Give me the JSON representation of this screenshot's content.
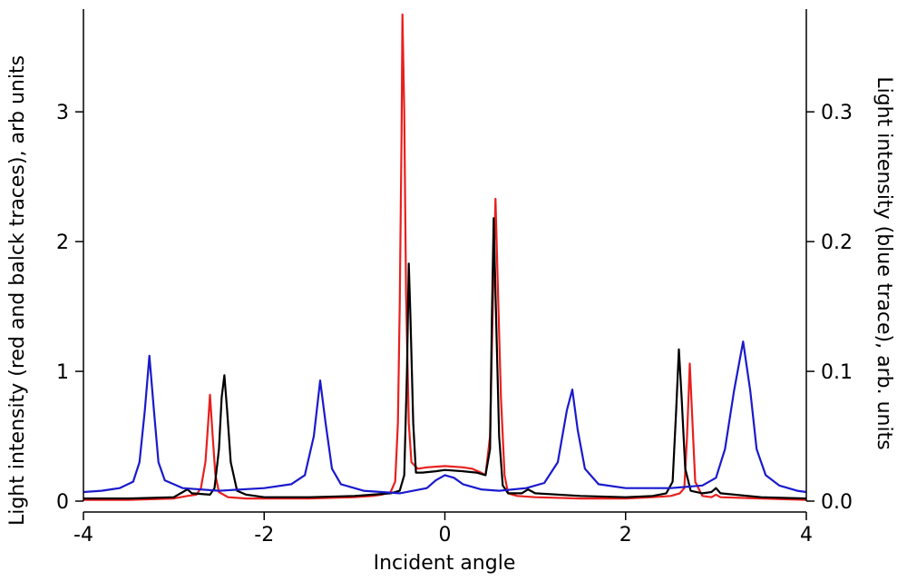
{
  "chart_data": {
    "type": "line",
    "title": "",
    "xlabel": "Incident angle",
    "ylabel_left": "Light intensity (red and balck traces), arb units",
    "ylabel_right": "Light intensity (blue trace), arb. units",
    "xlim": [
      -4,
      4
    ],
    "ylim_left": [
      0,
      3.75
    ],
    "ylim_right": [
      0,
      0.375
    ],
    "x_ticks": [
      -4,
      -2,
      0,
      2,
      4
    ],
    "x_tick_labels": [
      "-4",
      "-2",
      "0",
      "2",
      "4"
    ],
    "y_left_ticks": [
      0,
      1,
      2,
      3
    ],
    "y_left_tick_labels": [
      "0",
      "1",
      "2",
      "3"
    ],
    "y_right_ticks": [
      0,
      0.1,
      0.2,
      0.3
    ],
    "y_right_tick_labels": [
      "0.0",
      "0.1",
      "0.2",
      "0.3"
    ],
    "grid": false,
    "series": [
      {
        "color": "#e8201e",
        "axis": "left",
        "points": [
          [
            -4.0,
            0.01
          ],
          [
            -3.5,
            0.01
          ],
          [
            -3.0,
            0.02
          ],
          [
            -2.85,
            0.04
          ],
          [
            -2.75,
            0.05
          ],
          [
            -2.7,
            0.1
          ],
          [
            -2.65,
            0.3
          ],
          [
            -2.62,
            0.6
          ],
          [
            -2.6,
            0.82
          ],
          [
            -2.57,
            0.5
          ],
          [
            -2.54,
            0.2
          ],
          [
            -2.5,
            0.07
          ],
          [
            -2.4,
            0.03
          ],
          [
            -2.2,
            0.02
          ],
          [
            -2.0,
            0.02
          ],
          [
            -1.5,
            0.02
          ],
          [
            -1.0,
            0.03
          ],
          [
            -0.8,
            0.04
          ],
          [
            -0.7,
            0.05
          ],
          [
            -0.6,
            0.07
          ],
          [
            -0.55,
            0.15
          ],
          [
            -0.52,
            0.6
          ],
          [
            -0.5,
            1.5
          ],
          [
            -0.48,
            2.8
          ],
          [
            -0.47,
            3.75
          ],
          [
            -0.45,
            3.0
          ],
          [
            -0.43,
            1.6
          ],
          [
            -0.4,
            0.6
          ],
          [
            -0.37,
            0.3
          ],
          [
            -0.3,
            0.25
          ],
          [
            -0.2,
            0.26
          ],
          [
            0.0,
            0.27
          ],
          [
            0.2,
            0.26
          ],
          [
            0.3,
            0.25
          ],
          [
            0.4,
            0.22
          ],
          [
            0.45,
            0.2
          ],
          [
            0.5,
            0.5
          ],
          [
            0.53,
            1.5
          ],
          [
            0.56,
            2.33
          ],
          [
            0.58,
            1.8
          ],
          [
            0.62,
            0.8
          ],
          [
            0.66,
            0.2
          ],
          [
            0.7,
            0.06
          ],
          [
            0.8,
            0.04
          ],
          [
            1.0,
            0.03
          ],
          [
            1.5,
            0.02
          ],
          [
            2.0,
            0.02
          ],
          [
            2.3,
            0.03
          ],
          [
            2.5,
            0.04
          ],
          [
            2.6,
            0.06
          ],
          [
            2.65,
            0.1
          ],
          [
            2.68,
            0.5
          ],
          [
            2.71,
            1.06
          ],
          [
            2.74,
            0.6
          ],
          [
            2.77,
            0.15
          ],
          [
            2.85,
            0.04
          ],
          [
            2.95,
            0.03
          ],
          [
            3.0,
            0.05
          ],
          [
            3.05,
            0.03
          ],
          [
            3.5,
            0.02
          ],
          [
            4.0,
            0.01
          ]
        ]
      },
      {
        "color": "#000000",
        "axis": "left",
        "points": [
          [
            -4.0,
            0.02
          ],
          [
            -3.5,
            0.02
          ],
          [
            -3.0,
            0.03
          ],
          [
            -2.9,
            0.07
          ],
          [
            -2.85,
            0.09
          ],
          [
            -2.8,
            0.06
          ],
          [
            -2.6,
            0.05
          ],
          [
            -2.55,
            0.1
          ],
          [
            -2.5,
            0.4
          ],
          [
            -2.47,
            0.8
          ],
          [
            -2.44,
            0.97
          ],
          [
            -2.41,
            0.7
          ],
          [
            -2.37,
            0.3
          ],
          [
            -2.3,
            0.08
          ],
          [
            -2.2,
            0.05
          ],
          [
            -2.0,
            0.03
          ],
          [
            -1.5,
            0.03
          ],
          [
            -1.0,
            0.04
          ],
          [
            -0.8,
            0.05
          ],
          [
            -0.6,
            0.06
          ],
          [
            -0.5,
            0.08
          ],
          [
            -0.45,
            0.2
          ],
          [
            -0.42,
            1.0
          ],
          [
            -0.4,
            1.83
          ],
          [
            -0.38,
            1.4
          ],
          [
            -0.35,
            0.6
          ],
          [
            -0.32,
            0.22
          ],
          [
            -0.25,
            0.22
          ],
          [
            -0.1,
            0.23
          ],
          [
            0.0,
            0.24
          ],
          [
            0.2,
            0.23
          ],
          [
            0.35,
            0.22
          ],
          [
            0.45,
            0.2
          ],
          [
            0.5,
            0.4
          ],
          [
            0.52,
            1.4
          ],
          [
            0.54,
            2.18
          ],
          [
            0.56,
            1.6
          ],
          [
            0.6,
            0.5
          ],
          [
            0.64,
            0.12
          ],
          [
            0.7,
            0.06
          ],
          [
            0.85,
            0.06
          ],
          [
            0.92,
            0.09
          ],
          [
            1.0,
            0.06
          ],
          [
            1.5,
            0.04
          ],
          [
            2.0,
            0.03
          ],
          [
            2.3,
            0.04
          ],
          [
            2.45,
            0.06
          ],
          [
            2.52,
            0.15
          ],
          [
            2.56,
            0.7
          ],
          [
            2.59,
            1.17
          ],
          [
            2.62,
            0.8
          ],
          [
            2.66,
            0.25
          ],
          [
            2.72,
            0.08
          ],
          [
            2.85,
            0.06
          ],
          [
            2.95,
            0.07
          ],
          [
            3.0,
            0.1
          ],
          [
            3.05,
            0.06
          ],
          [
            3.5,
            0.03
          ],
          [
            4.0,
            0.02
          ]
        ]
      },
      {
        "color": "#1a1acd",
        "axis": "right",
        "points": [
          [
            -4.0,
            0.007
          ],
          [
            -3.8,
            0.008
          ],
          [
            -3.6,
            0.01
          ],
          [
            -3.45,
            0.015
          ],
          [
            -3.38,
            0.03
          ],
          [
            -3.32,
            0.07
          ],
          [
            -3.27,
            0.112
          ],
          [
            -3.22,
            0.07
          ],
          [
            -3.17,
            0.03
          ],
          [
            -3.1,
            0.016
          ],
          [
            -2.9,
            0.01
          ],
          [
            -2.5,
            0.008
          ],
          [
            -2.0,
            0.01
          ],
          [
            -1.7,
            0.013
          ],
          [
            -1.55,
            0.02
          ],
          [
            -1.45,
            0.05
          ],
          [
            -1.38,
            0.093
          ],
          [
            -1.32,
            0.06
          ],
          [
            -1.25,
            0.025
          ],
          [
            -1.15,
            0.013
          ],
          [
            -0.9,
            0.008
          ],
          [
            -0.5,
            0.006
          ],
          [
            -0.2,
            0.01
          ],
          [
            -0.1,
            0.016
          ],
          [
            0.0,
            0.02
          ],
          [
            0.1,
            0.018
          ],
          [
            0.2,
            0.013
          ],
          [
            0.4,
            0.009
          ],
          [
            0.6,
            0.008
          ],
          [
            0.9,
            0.01
          ],
          [
            1.1,
            0.014
          ],
          [
            1.25,
            0.03
          ],
          [
            1.35,
            0.07
          ],
          [
            1.41,
            0.086
          ],
          [
            1.47,
            0.055
          ],
          [
            1.55,
            0.025
          ],
          [
            1.7,
            0.013
          ],
          [
            2.0,
            0.01
          ],
          [
            2.5,
            0.01
          ],
          [
            2.85,
            0.012
          ],
          [
            3.0,
            0.018
          ],
          [
            3.1,
            0.04
          ],
          [
            3.2,
            0.085
          ],
          [
            3.3,
            0.123
          ],
          [
            3.38,
            0.085
          ],
          [
            3.45,
            0.04
          ],
          [
            3.55,
            0.02
          ],
          [
            3.7,
            0.012
          ],
          [
            3.9,
            0.008
          ],
          [
            4.0,
            0.007
          ]
        ]
      }
    ]
  }
}
